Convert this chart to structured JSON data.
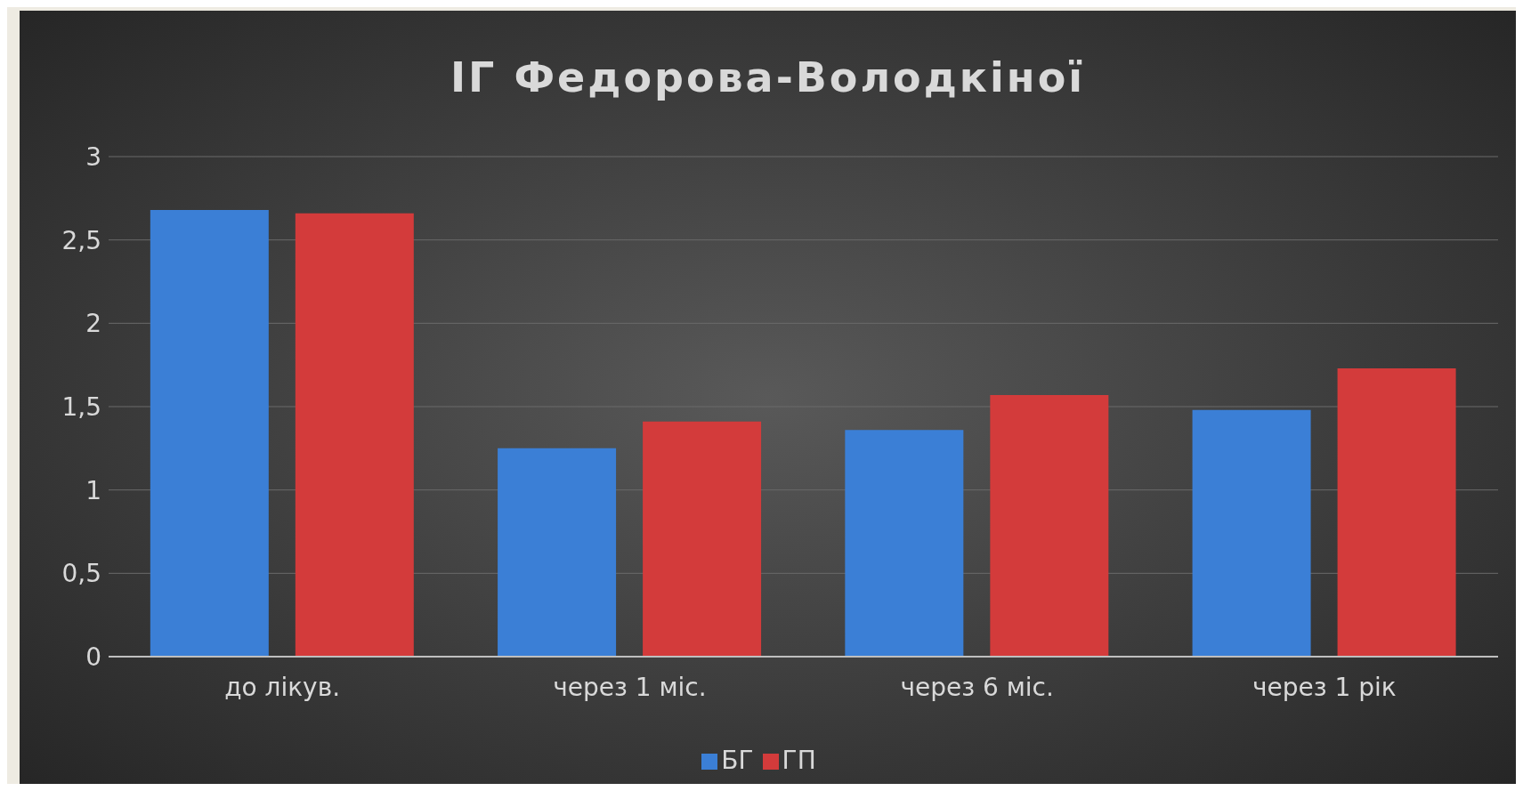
{
  "chart_data": {
    "type": "bar",
    "title": "ІГ Федорова-Володкіної",
    "categories": [
      "до лікув.",
      "через 1 міс.",
      "через 6 міс.",
      "через 1 рік"
    ],
    "series": [
      {
        "name": "БГ",
        "color": "#3b7fd6",
        "values": [
          2.68,
          1.25,
          1.36,
          1.48
        ]
      },
      {
        "name": "ГП",
        "color": "#d33b3b",
        "values": [
          2.66,
          1.41,
          1.57,
          1.73
        ]
      }
    ],
    "ylim": [
      0,
      3
    ],
    "yticks": [
      0,
      {
        "value": 0.5,
        "label": "0,5"
      },
      1,
      {
        "value": 1.5,
        "label": "1,5"
      },
      2,
      {
        "value": 2.5,
        "label": "2,5"
      },
      3
    ],
    "grid": "y",
    "legend": "bottom"
  }
}
